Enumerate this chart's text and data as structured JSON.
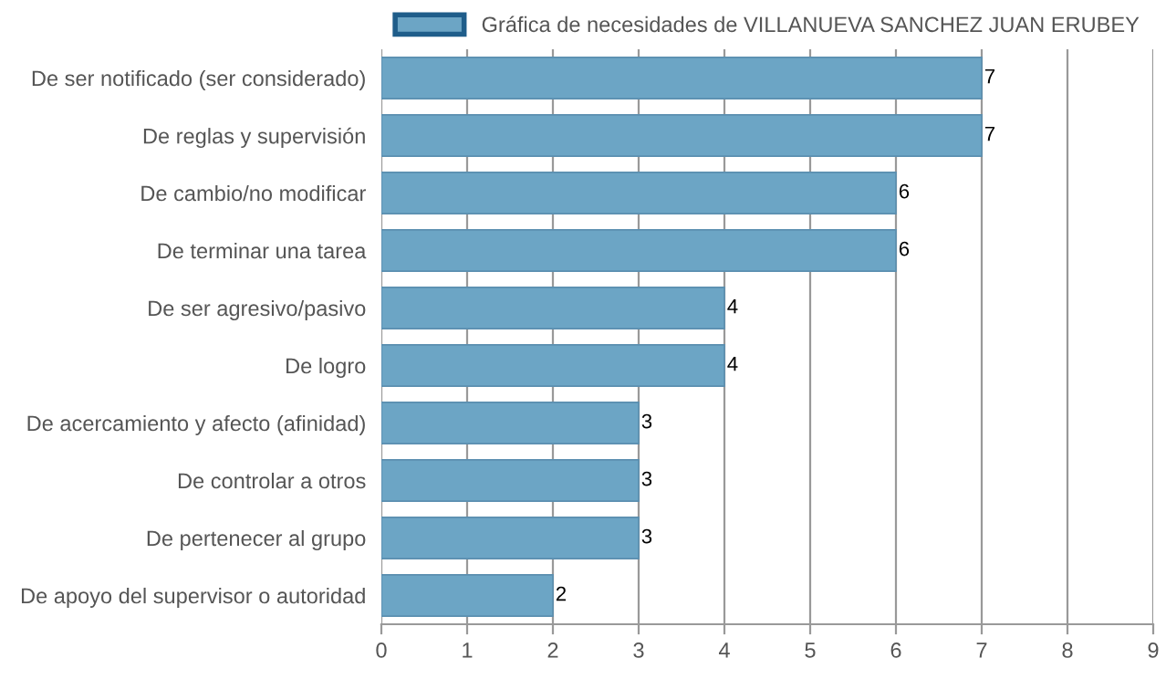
{
  "chart_data": {
    "type": "bar",
    "orientation": "horizontal",
    "categories": [
      "De ser notificado (ser considerado)",
      "De reglas y supervisión",
      "De cambio/no modificar",
      "De terminar una tarea",
      "De ser agresivo/pasivo",
      "De logro",
      "De acercamiento y afecto (afinidad)",
      "De controlar a otros",
      "De pertenecer al grupo",
      "De apoyo del supervisor o autoridad"
    ],
    "series": [
      {
        "name": "Gráfica de necesidades de VILLANUEVA SANCHEZ JUAN ERUBEY",
        "color": "#6ca5c5",
        "values": [
          7,
          7,
          6,
          6,
          4,
          4,
          3,
          3,
          3,
          2
        ]
      }
    ],
    "xlim": [
      0,
      9
    ],
    "xticks": [
      0,
      1,
      2,
      3,
      4,
      5,
      6,
      7,
      8,
      9
    ],
    "grid": "x",
    "legend": "top",
    "data_labels": true
  }
}
